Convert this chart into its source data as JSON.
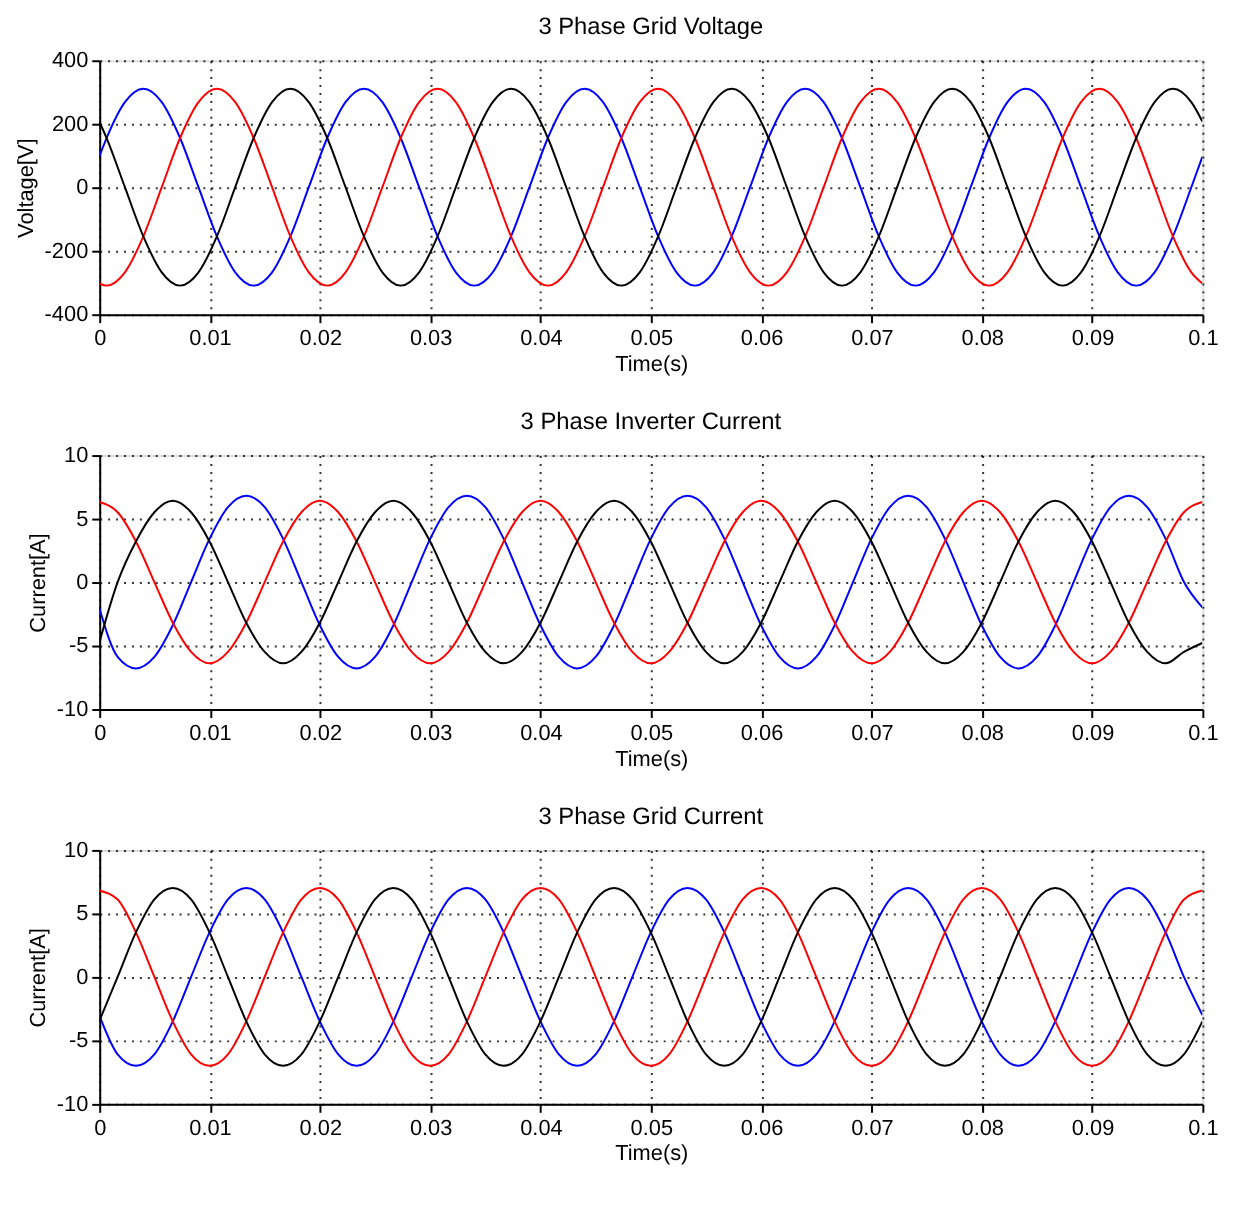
{
  "chart_data": [
    {
      "type": "line",
      "title": "3 Phase Grid Voltage",
      "xlabel": "Time(s)",
      "ylabel": "Voltage[V]",
      "xlim": [
        0,
        0.1
      ],
      "xticks": [
        0,
        0.01,
        0.02,
        0.03,
        0.04,
        0.05,
        0.06,
        0.07,
        0.08,
        0.09,
        0.1
      ],
      "ylim": [
        -400,
        400
      ],
      "yticks": [
        -400,
        -200,
        0,
        200,
        400
      ],
      "grid": true,
      "line_style": "solid",
      "x": [
        0,
        0.00067,
        0.00233,
        0.004,
        0.00567,
        0.00733,
        0.009,
        0.01067,
        0.01233,
        0.014,
        0.01567,
        0.01733,
        0.019,
        0.02067,
        0.02233,
        0.024,
        0.02567,
        0.02733,
        0.029,
        0.03067,
        0.03233,
        0.034,
        0.03567,
        0.03733,
        0.039,
        0.04067,
        0.04233,
        0.044,
        0.04567,
        0.04733,
        0.049,
        0.05067,
        0.05233,
        0.054,
        0.05567,
        0.05733,
        0.059,
        0.06067,
        0.06233,
        0.064,
        0.06567,
        0.06733,
        0.069,
        0.07067,
        0.07233,
        0.074,
        0.07567,
        0.07733,
        0.079,
        0.08067,
        0.08233,
        0.084,
        0.08567,
        0.08733,
        0.089,
        0.09067,
        0.09233,
        0.094,
        0.09567,
        0.09733,
        0.099,
        0.1
      ],
      "series": [
        {
          "color": "#0000ff",
          "values": [
            96,
            155,
            268,
            310,
            268,
            155,
            0,
            -155,
            -268,
            -310,
            -268,
            -155,
            0,
            155,
            268,
            310,
            268,
            155,
            0,
            -155,
            -268,
            -310,
            -268,
            -155,
            0,
            155,
            268,
            310,
            268,
            155,
            0,
            -155,
            -268,
            -310,
            -268,
            -155,
            0,
            155,
            268,
            310,
            268,
            155,
            0,
            -155,
            -268,
            -310,
            -268,
            -155,
            0,
            155,
            268,
            310,
            268,
            155,
            0,
            -155,
            -268,
            -310,
            -268,
            -155,
            0,
            96
          ]
        },
        {
          "color": "#ff0000",
          "values": [
            -303,
            -310,
            -268,
            -155,
            0,
            155,
            268,
            310,
            268,
            155,
            0,
            -155,
            -268,
            -310,
            -268,
            -155,
            0,
            155,
            268,
            310,
            268,
            155,
            0,
            -155,
            -268,
            -310,
            -268,
            -155,
            0,
            155,
            268,
            310,
            268,
            155,
            0,
            -155,
            -268,
            -310,
            -268,
            -155,
            0,
            155,
            268,
            310,
            268,
            155,
            0,
            -155,
            -268,
            -310,
            -268,
            -155,
            0,
            155,
            268,
            310,
            268,
            155,
            0,
            -155,
            -268,
            -303
          ]
        },
        {
          "color": "#000000",
          "values": [
            207,
            155,
            0,
            -155,
            -268,
            -310,
            -268,
            -155,
            0,
            155,
            268,
            310,
            268,
            155,
            0,
            -155,
            -268,
            -310,
            -268,
            -155,
            0,
            155,
            268,
            310,
            268,
            155,
            0,
            -155,
            -268,
            -310,
            -268,
            -155,
            0,
            155,
            268,
            310,
            268,
            155,
            0,
            -155,
            -268,
            -310,
            -268,
            -155,
            0,
            155,
            268,
            310,
            268,
            155,
            0,
            -155,
            -268,
            -310,
            -268,
            -155,
            0,
            155,
            268,
            310,
            268,
            207
          ]
        }
      ]
    },
    {
      "type": "line",
      "title": "3 Phase Inverter Current",
      "xlabel": "Time(s)",
      "ylabel": "Current[A]",
      "xlim": [
        0,
        0.1
      ],
      "xticks": [
        0,
        0.01,
        0.02,
        0.03,
        0.04,
        0.05,
        0.06,
        0.07,
        0.08,
        0.09,
        0.1
      ],
      "ylim": [
        -10,
        10
      ],
      "yticks": [
        -10,
        -5,
        0,
        5,
        10
      ],
      "grid": true,
      "line_style": "solid",
      "x": [
        0,
        0.00167,
        0.00333,
        0.005,
        0.00667,
        0.00833,
        0.01,
        0.01167,
        0.01333,
        0.015,
        0.01667,
        0.01833,
        0.02,
        0.02167,
        0.02333,
        0.025,
        0.02667,
        0.02833,
        0.03,
        0.03167,
        0.03333,
        0.035,
        0.03667,
        0.03833,
        0.04,
        0.04167,
        0.04333,
        0.045,
        0.04667,
        0.04833,
        0.05,
        0.05167,
        0.05333,
        0.055,
        0.05667,
        0.05833,
        0.06,
        0.06167,
        0.06333,
        0.065,
        0.06667,
        0.06833,
        0.07,
        0.07167,
        0.07333,
        0.075,
        0.07667,
        0.07833,
        0.08,
        0.08167,
        0.08333,
        0.085,
        0.08667,
        0.08833,
        0.09,
        0.09167,
        0.09333,
        0.095,
        0.09667,
        0.09833,
        0.1
      ],
      "series": [
        {
          "color": "#0000ff",
          "values": [
            -2,
            -5.9,
            -6.8,
            -5.9,
            -3.4,
            0,
            3.4,
            5.9,
            6.8,
            5.9,
            3.4,
            0,
            -3.4,
            -5.9,
            -6.8,
            -5.9,
            -3.4,
            0,
            3.4,
            5.9,
            6.8,
            5.9,
            3.4,
            0,
            -3.4,
            -5.9,
            -6.8,
            -5.9,
            -3.4,
            0,
            3.4,
            5.9,
            6.8,
            5.9,
            3.4,
            0,
            -3.4,
            -5.9,
            -6.8,
            -5.9,
            -3.4,
            0,
            3.4,
            5.9,
            6.8,
            5.9,
            3.4,
            0,
            -3.4,
            -5.9,
            -6.8,
            -5.9,
            -3.4,
            0,
            3.4,
            5.9,
            6.8,
            5.9,
            3.4,
            0,
            -2
          ]
        },
        {
          "color": "#ff0000",
          "values": [
            6.3,
            5.5,
            3.2,
            0,
            -3.2,
            -5.5,
            -6.4,
            -5.5,
            -3.2,
            0,
            3.2,
            5.5,
            6.4,
            5.5,
            3.2,
            0,
            -3.2,
            -5.5,
            -6.4,
            -5.5,
            -3.2,
            0,
            3.2,
            5.5,
            6.4,
            5.5,
            3.2,
            0,
            -3.2,
            -5.5,
            -6.4,
            -5.5,
            -3.2,
            0,
            3.2,
            5.5,
            6.4,
            5.5,
            3.2,
            0,
            -3.2,
            -5.5,
            -6.4,
            -5.5,
            -3.2,
            0,
            3.2,
            5.5,
            6.4,
            5.5,
            3.2,
            0,
            -3.2,
            -5.5,
            -6.4,
            -5.5,
            -3.2,
            0,
            3.2,
            5.5,
            6.3
          ]
        },
        {
          "color": "#000000",
          "values": [
            -4.8,
            0,
            3.2,
            5.5,
            6.4,
            5.5,
            3.2,
            0,
            -3.2,
            -5.5,
            -6.4,
            -5.5,
            -3.2,
            0,
            3.2,
            5.5,
            6.4,
            5.5,
            3.2,
            0,
            -3.2,
            -5.5,
            -6.4,
            -5.5,
            -3.2,
            0,
            3.2,
            5.5,
            6.4,
            5.5,
            3.2,
            0,
            -3.2,
            -5.5,
            -6.4,
            -5.5,
            -3.2,
            0,
            3.2,
            5.5,
            6.4,
            5.5,
            3.2,
            0,
            -3.2,
            -5.5,
            -6.4,
            -5.5,
            -3.2,
            0,
            3.2,
            5.5,
            6.4,
            5.5,
            3.2,
            0,
            -3.2,
            -5.5,
            -6.4,
            -5.5,
            -4.8
          ]
        }
      ]
    },
    {
      "type": "line",
      "title": "3 Phase Grid Current",
      "xlabel": "Time(s)",
      "ylabel": "Current[A]",
      "xlim": [
        0,
        0.1
      ],
      "xticks": [
        0,
        0.01,
        0.02,
        0.03,
        0.04,
        0.05,
        0.06,
        0.07,
        0.08,
        0.09,
        0.1
      ],
      "ylim": [
        -10,
        10
      ],
      "yticks": [
        -10,
        -5,
        0,
        5,
        10
      ],
      "grid": true,
      "line_style": "solid",
      "x": [
        0,
        0.00167,
        0.00333,
        0.005,
        0.00667,
        0.00833,
        0.01,
        0.01167,
        0.01333,
        0.015,
        0.01667,
        0.01833,
        0.02,
        0.02167,
        0.02333,
        0.025,
        0.02667,
        0.02833,
        0.03,
        0.03167,
        0.03333,
        0.035,
        0.03667,
        0.03833,
        0.04,
        0.04167,
        0.04333,
        0.045,
        0.04667,
        0.04833,
        0.05,
        0.05167,
        0.05333,
        0.055,
        0.05667,
        0.05833,
        0.06,
        0.06167,
        0.06333,
        0.065,
        0.06667,
        0.06833,
        0.07,
        0.07167,
        0.07333,
        0.075,
        0.07667,
        0.07833,
        0.08,
        0.08167,
        0.08333,
        0.085,
        0.08667,
        0.08833,
        0.09,
        0.09167,
        0.09333,
        0.095,
        0.09667,
        0.09833,
        0.1
      ],
      "series": [
        {
          "color": "#0000ff",
          "values": [
            -3,
            -6.1,
            -7,
            -6.1,
            -3.5,
            0,
            3.5,
            6.1,
            7,
            6.1,
            3.5,
            0,
            -3.5,
            -6.1,
            -7,
            -6.1,
            -3.5,
            0,
            3.5,
            6.1,
            7,
            6.1,
            3.5,
            0,
            -3.5,
            -6.1,
            -7,
            -6.1,
            -3.5,
            0,
            3.5,
            6.1,
            7,
            6.1,
            3.5,
            0,
            -3.5,
            -6.1,
            -7,
            -6.1,
            -3.5,
            0,
            3.5,
            6.1,
            7,
            6.1,
            3.5,
            0,
            -3.5,
            -6.1,
            -7,
            -6.1,
            -3.5,
            0,
            3.5,
            6.1,
            7,
            6.1,
            3.5,
            0,
            -3
          ]
        },
        {
          "color": "#ff0000",
          "values": [
            6.8,
            6.1,
            3.5,
            0,
            -3.5,
            -6.1,
            -7,
            -6.1,
            -3.5,
            0,
            3.5,
            6.1,
            7,
            6.1,
            3.5,
            0,
            -3.5,
            -6.1,
            -7,
            -6.1,
            -3.5,
            0,
            3.5,
            6.1,
            7,
            6.1,
            3.5,
            0,
            -3.5,
            -6.1,
            -7,
            -6.1,
            -3.5,
            0,
            3.5,
            6.1,
            7,
            6.1,
            3.5,
            0,
            -3.5,
            -6.1,
            -7,
            -6.1,
            -3.5,
            0,
            3.5,
            6.1,
            7,
            6.1,
            3.5,
            0,
            -3.5,
            -6.1,
            -7,
            -6.1,
            -3.5,
            0,
            3.5,
            6.1,
            6.8
          ]
        },
        {
          "color": "#000000",
          "values": [
            -3.5,
            0,
            3.5,
            6.1,
            7,
            6.1,
            3.5,
            0,
            -3.5,
            -6.1,
            -7,
            -6.1,
            -3.5,
            0,
            3.5,
            6.1,
            7,
            6.1,
            3.5,
            0,
            -3.5,
            -6.1,
            -7,
            -6.1,
            -3.5,
            0,
            3.5,
            6.1,
            7,
            6.1,
            3.5,
            0,
            -3.5,
            -6.1,
            -7,
            -6.1,
            -3.5,
            0,
            3.5,
            6.1,
            7,
            6.1,
            3.5,
            0,
            -3.5,
            -6.1,
            -7,
            -6.1,
            -3.5,
            0,
            3.5,
            6.1,
            7,
            6.1,
            3.5,
            0,
            -3.5,
            -6.1,
            -7,
            -6.1,
            -3.5
          ]
        }
      ]
    }
  ]
}
